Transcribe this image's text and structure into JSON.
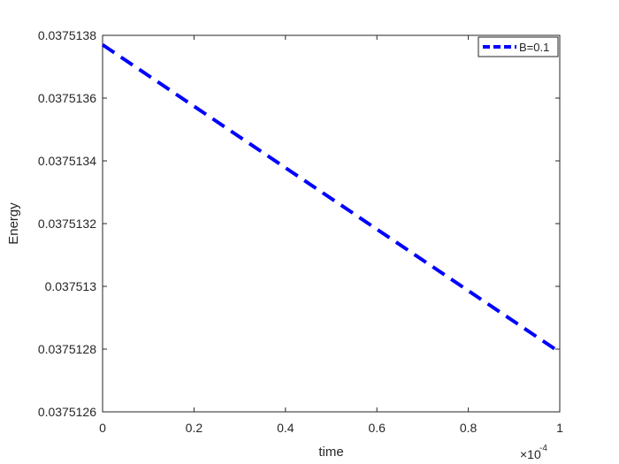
{
  "chart_data": {
    "type": "line",
    "title": "",
    "xlabel": "time",
    "ylabel": "Energy",
    "x_exponent_label": "×10",
    "x_exponent_power": "-4",
    "xlim": [
      0,
      1
    ],
    "ylim": [
      0.0375126,
      0.0375138
    ],
    "x_ticks": [
      0,
      0.2,
      0.4,
      0.6,
      0.8,
      1
    ],
    "x_tick_labels": [
      "0",
      "0.2",
      "0.4",
      "0.6",
      "0.8",
      "1"
    ],
    "y_ticks": [
      0.0375126,
      0.0375128,
      0.037513,
      0.0375132,
      0.0375134,
      0.0375136,
      0.0375138
    ],
    "y_tick_labels": [
      "0.0375126",
      "0.0375128",
      "0.037513",
      "0.0375132",
      "0.0375134",
      "0.0375136",
      "0.0375138"
    ],
    "grid": false,
    "legend_position": "top-right",
    "series": [
      {
        "name": "B=0.1",
        "color": "#0000ff",
        "line_style": "dashed",
        "x": [
          0,
          1
        ],
        "y": [
          0.03751377,
          0.03751279
        ]
      }
    ]
  }
}
